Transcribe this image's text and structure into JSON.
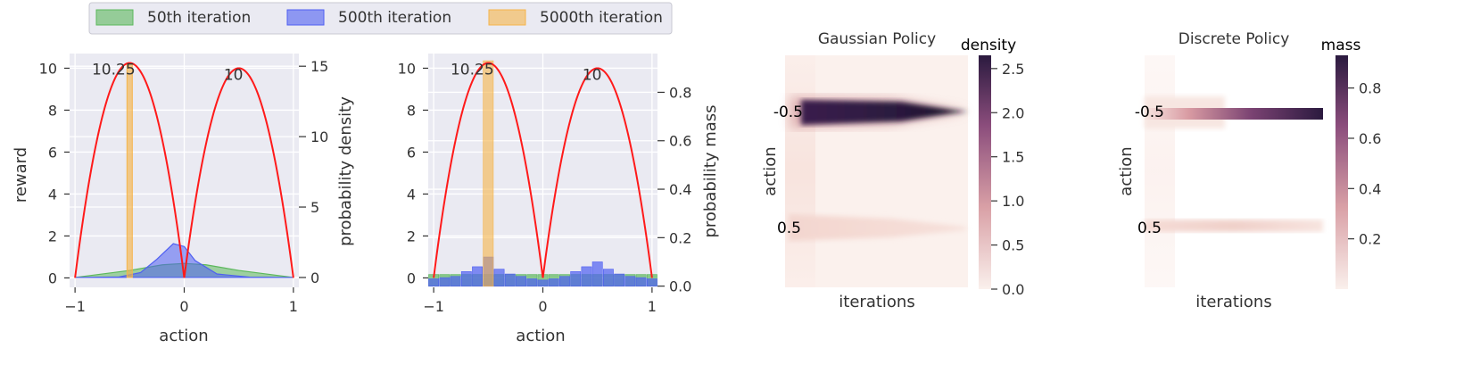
{
  "legend": {
    "entries": [
      {
        "label": "50th iteration",
        "color": "#5cb85c"
      },
      {
        "label": "500th iteration",
        "color": "#4f5ff2"
      },
      {
        "label": "5000th iteration",
        "color": "#f5b44a"
      }
    ]
  },
  "colors": {
    "reward": "#ff1a1a",
    "axes_bg": "#eaeaf2",
    "grid": "#ffffff",
    "heat_dark": "#2b1a3f"
  },
  "chart_data": [
    {
      "type": "line",
      "title": "",
      "xlabel": "action",
      "ylabel": "reward",
      "y2label": "probability density",
      "xlim": [
        -1.05,
        1.05
      ],
      "ylim": [
        -0.45,
        10.7
      ],
      "y2lim": [
        -0.7,
        15.9
      ],
      "xticks": [
        "−1",
        "0",
        "1"
      ],
      "yticks": [
        "0",
        "2",
        "4",
        "6",
        "8",
        "10"
      ],
      "y2ticks": [
        "0",
        "5",
        "10",
        "15"
      ],
      "grid": true,
      "annotations": [
        {
          "text": "10.25",
          "x": -0.5,
          "y": 10.25
        },
        {
          "text": "10",
          "x": 0.5,
          "y": 10
        }
      ],
      "series": [
        {
          "name": "reward",
          "x": [
            -1.0,
            -0.75,
            -0.5,
            -0.25,
            0.0,
            0.25,
            0.5,
            0.75,
            1.0
          ],
          "y": [
            0,
            7.69,
            10.25,
            7.69,
            0,
            7.5,
            10,
            7.5,
            0
          ]
        },
        {
          "name": "50th iteration",
          "axis": "density",
          "x": [
            -1.0,
            -0.5,
            -0.2,
            0.0,
            0.2,
            0.5,
            1.0
          ],
          "y": [
            0.0,
            0.5,
            0.9,
            1.0,
            0.9,
            0.5,
            0.0
          ]
        },
        {
          "name": "500th iteration",
          "axis": "density",
          "x": [
            -1.0,
            -0.6,
            -0.4,
            -0.25,
            -0.1,
            0.0,
            0.1,
            0.3,
            0.6,
            1.0
          ],
          "y": [
            0.0,
            0.03,
            0.35,
            1.3,
            2.4,
            2.2,
            1.2,
            0.25,
            0.02,
            0.0
          ]
        },
        {
          "name": "5000th iteration",
          "axis": "density",
          "x": [
            -0.5
          ],
          "y": [
            15.2
          ]
        }
      ]
    },
    {
      "type": "bar",
      "title": "",
      "xlabel": "action",
      "ylabel": "",
      "y2label": "probability mass",
      "xlim": [
        -1.05,
        1.05
      ],
      "ylim": [
        -0.45,
        10.7
      ],
      "y2lim": [
        -0.005,
        0.96
      ],
      "xticks": [
        "−1",
        "0",
        "1"
      ],
      "yticks": [
        "0",
        "2",
        "4",
        "6",
        "8",
        "10"
      ],
      "y2ticks": [
        "0.0",
        "0.2",
        "0.4",
        "0.6",
        "0.8"
      ],
      "grid": true,
      "annotations": [
        {
          "text": "10.25",
          "x": -0.5,
          "y": 10.25
        },
        {
          "text": "10",
          "x": 0.5,
          "y": 10
        }
      ],
      "categories": [
        "-1.0",
        "-0.9",
        "-0.8",
        "-0.7",
        "-0.6",
        "-0.5",
        "-0.4",
        "-0.3",
        "-0.2",
        "-0.1",
        "0.0",
        "0.1",
        "0.2",
        "0.3",
        "0.4",
        "0.5",
        "0.6",
        "0.7",
        "0.8",
        "0.9",
        "1.0"
      ],
      "series": [
        {
          "name": "50th iteration",
          "values": [
            0.048,
            0.048,
            0.048,
            0.048,
            0.048,
            0.048,
            0.048,
            0.048,
            0.048,
            0.048,
            0.048,
            0.048,
            0.048,
            0.048,
            0.048,
            0.048,
            0.048,
            0.048,
            0.048,
            0.048,
            0.048
          ]
        },
        {
          "name": "500th iteration",
          "values": [
            0.03,
            0.035,
            0.04,
            0.06,
            0.08,
            0.12,
            0.07,
            0.05,
            0.04,
            0.03,
            0.025,
            0.03,
            0.04,
            0.06,
            0.08,
            0.1,
            0.07,
            0.05,
            0.04,
            0.035,
            0.03
          ]
        },
        {
          "name": "5000th iteration",
          "values": [
            0,
            0,
            0,
            0,
            0,
            0.93,
            0,
            0,
            0,
            0,
            0,
            0,
            0,
            0,
            0,
            0,
            0,
            0,
            0,
            0,
            0
          ]
        }
      ]
    },
    {
      "type": "heatmap",
      "title": "Gaussian Policy",
      "xlabel": "iterations",
      "ylabel": "action",
      "colorbar_label": "density",
      "colorbar_range": [
        0.0,
        2.65
      ],
      "colorbar_ticks": [
        "0.0",
        "0.5",
        "1.0",
        "1.5",
        "2.0",
        "2.5"
      ],
      "row_labels": [
        "-0.5",
        "0.5"
      ],
      "summary": {
        "peak_density": 2.65,
        "peak_action": -0.5
      }
    },
    {
      "type": "heatmap",
      "title": "Discrete Policy",
      "xlabel": "iterations",
      "ylabel": "action",
      "colorbar_label": "mass",
      "colorbar_range": [
        0.0,
        0.93
      ],
      "colorbar_ticks": [
        "0.2",
        "0.4",
        "0.6",
        "0.8"
      ],
      "row_labels": [
        "-0.5",
        "0.5"
      ],
      "summary": {
        "peak_mass": 0.93,
        "peak_action": -0.5
      }
    }
  ]
}
